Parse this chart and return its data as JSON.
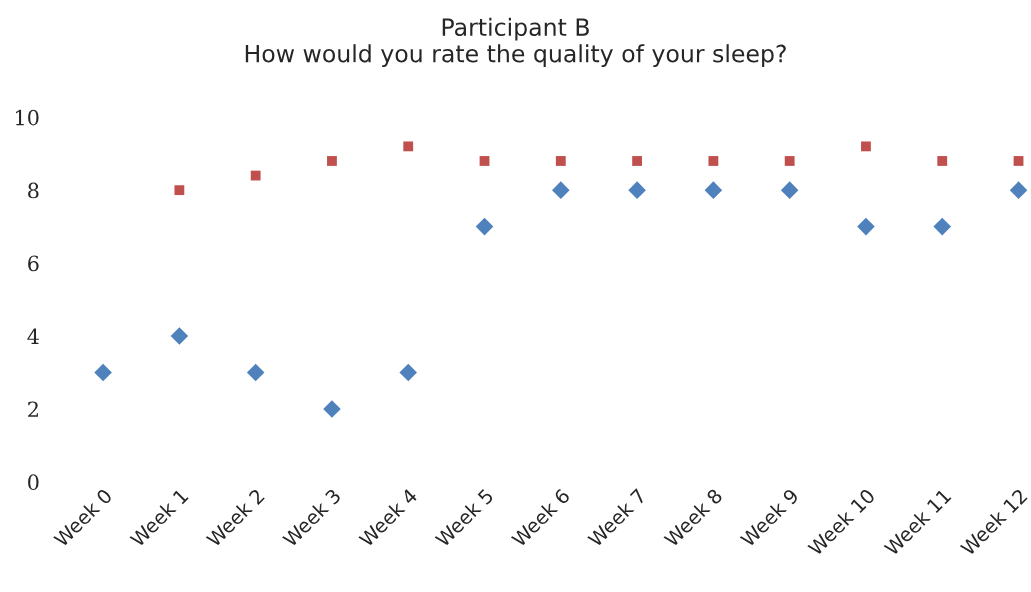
{
  "chart_data": {
    "type": "scatter",
    "title": "Participant B\nHow would you rate the quality of your sleep?",
    "categories": [
      "Week 0",
      "Week 1",
      "Week 2",
      "Week 3",
      "Week 4",
      "Week 5",
      "Week 6",
      "Week 7",
      "Week 8",
      "Week 9",
      "Week 10",
      "Week 11",
      "Week 12"
    ],
    "series": [
      {
        "color": "#4f81bd",
        "marker": "diamond",
        "values": [
          3,
          4,
          3,
          2,
          3,
          7,
          8,
          8,
          8,
          8,
          7,
          7,
          8
        ]
      },
      {
        "color": "#c0504d",
        "marker": "square",
        "values": [
          null,
          8,
          8.4,
          8.8,
          9.2,
          8.8,
          8.8,
          8.8,
          8.8,
          8.8,
          9.2,
          8.8,
          8.8
        ]
      }
    ],
    "ylim": [
      0,
      10
    ],
    "yticks": [
      0,
      2,
      4,
      6,
      8,
      10
    ],
    "grid": false,
    "legend": false
  }
}
